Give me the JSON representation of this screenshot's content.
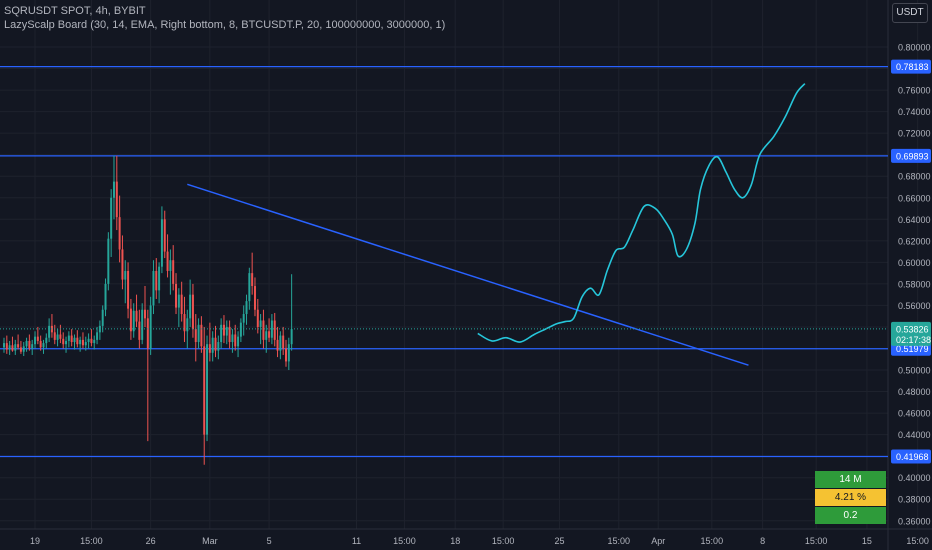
{
  "header": {
    "symbol_line": "SQRUSDT SPOT, 4h, BYBIT",
    "indicator_line": "LazyScalp Board (30, 14, EMA, Right bottom, 8, BTCUSDT.P, 20, 100000000, 3000000, 1)"
  },
  "currency_button": "USDT",
  "colors": {
    "background": "#131722",
    "grid": "#1e222d",
    "candle_up": "#26a69a",
    "candle_down": "#ef5350",
    "horizontal_level": "#2962ff",
    "trendline": "#2962ff",
    "projection": "#26c6da",
    "last_price_tag": "#26a69a",
    "level_tag": "#2962ff"
  },
  "board": {
    "rows": [
      {
        "text": "14 M",
        "color": "#2e9b3a"
      },
      {
        "text": "4.21 %",
        "color": "#f5c232"
      },
      {
        "text": "0.2",
        "color": "#2e9b3a"
      }
    ]
  },
  "chart_data": {
    "type": "candlestick",
    "timeframe": "4h",
    "y_range": [
      0.35,
      0.8
    ],
    "y_ticks": [
      "0.80000",
      "0.78000",
      "0.76000",
      "0.74000",
      "0.72000",
      "0.70000",
      "0.68000",
      "0.66000",
      "0.64000",
      "0.62000",
      "0.60000",
      "0.58000",
      "0.56000",
      "0.54000",
      "0.52000",
      "0.50000",
      "0.48000",
      "0.46000",
      "0.44000",
      "0.42000",
      "0.40000",
      "0.38000",
      "0.36000"
    ],
    "x_ticks": [
      {
        "label": "19",
        "t": 11
      },
      {
        "label": "15:00",
        "t": 31
      },
      {
        "label": "26",
        "t": 52
      },
      {
        "label": "Mar",
        "t": 73
      },
      {
        "label": "5",
        "t": 94
      },
      {
        "label": "11",
        "t": 125
      },
      {
        "label": "15:00",
        "t": 142
      },
      {
        "label": "18",
        "t": 160
      },
      {
        "label": "15:00",
        "t": 177
      },
      {
        "label": "25",
        "t": 197
      },
      {
        "label": "15:00",
        "t": 218
      },
      {
        "label": "Apr",
        "t": 232
      },
      {
        "label": "15:00",
        "t": 251
      },
      {
        "label": "8",
        "t": 269
      },
      {
        "label": "15:00",
        "t": 288
      },
      {
        "label": "15",
        "t": 306
      },
      {
        "label": "15:00",
        "t": 324
      }
    ],
    "horizontal_levels": [
      {
        "price": 0.78183,
        "label": "0.78183"
      },
      {
        "price": 0.69893,
        "label": "0.69893"
      },
      {
        "price": 0.51979,
        "label": "0.51979"
      },
      {
        "price": 0.41968,
        "label": "0.41968"
      }
    ],
    "last_price": {
      "price": 0.53826,
      "label": "0.53826",
      "countdown": "02:17:38"
    },
    "trendline": {
      "start": {
        "t": 65,
        "price": 0.6725
      },
      "end": {
        "t": 264,
        "price": 0.5045
      }
    },
    "projection_path": [
      [
        168,
        0.534
      ],
      [
        173,
        0.527
      ],
      [
        178,
        0.53
      ],
      [
        183,
        0.526
      ],
      [
        188,
        0.533
      ],
      [
        192,
        0.538
      ],
      [
        196,
        0.543
      ],
      [
        199,
        0.545
      ],
      [
        202,
        0.548
      ],
      [
        205,
        0.568
      ],
      [
        208,
        0.576
      ],
      [
        211,
        0.57
      ],
      [
        214,
        0.593
      ],
      [
        217,
        0.611
      ],
      [
        220,
        0.614
      ],
      [
        223,
        0.63
      ],
      [
        227,
        0.652
      ],
      [
        231,
        0.65
      ],
      [
        234,
        0.64
      ],
      [
        237,
        0.626
      ],
      [
        239,
        0.606
      ],
      [
        242,
        0.612
      ],
      [
        245,
        0.636
      ],
      [
        247,
        0.668
      ],
      [
        250,
        0.69
      ],
      [
        253,
        0.698
      ],
      [
        256,
        0.684
      ],
      [
        259,
        0.668
      ],
      [
        262,
        0.66
      ],
      [
        265,
        0.672
      ],
      [
        268,
        0.7
      ],
      [
        273,
        0.717
      ],
      [
        277,
        0.735
      ],
      [
        281,
        0.757
      ],
      [
        284,
        0.766
      ]
    ],
    "candles": [
      {
        "o": 0.521,
        "h": 0.53,
        "l": 0.516,
        "c": 0.525
      },
      {
        "o": 0.525,
        "h": 0.532,
        "l": 0.515,
        "c": 0.519
      },
      {
        "o": 0.519,
        "h": 0.527,
        "l": 0.514,
        "c": 0.523
      },
      {
        "o": 0.523,
        "h": 0.531,
        "l": 0.517,
        "c": 0.518
      },
      {
        "o": 0.518,
        "h": 0.528,
        "l": 0.514,
        "c": 0.524
      },
      {
        "o": 0.524,
        "h": 0.533,
        "l": 0.519,
        "c": 0.521
      },
      {
        "o": 0.521,
        "h": 0.527,
        "l": 0.515,
        "c": 0.517
      },
      {
        "o": 0.517,
        "h": 0.526,
        "l": 0.513,
        "c": 0.522
      },
      {
        "o": 0.522,
        "h": 0.53,
        "l": 0.517,
        "c": 0.527
      },
      {
        "o": 0.527,
        "h": 0.533,
        "l": 0.518,
        "c": 0.52
      },
      {
        "o": 0.52,
        "h": 0.528,
        "l": 0.514,
        "c": 0.524
      },
      {
        "o": 0.524,
        "h": 0.536,
        "l": 0.52,
        "c": 0.531
      },
      {
        "o": 0.531,
        "h": 0.54,
        "l": 0.524,
        "c": 0.527
      },
      {
        "o": 0.527,
        "h": 0.532,
        "l": 0.518,
        "c": 0.521
      },
      {
        "o": 0.521,
        "h": 0.528,
        "l": 0.515,
        "c": 0.525
      },
      {
        "o": 0.525,
        "h": 0.534,
        "l": 0.52,
        "c": 0.53
      },
      {
        "o": 0.53,
        "h": 0.548,
        "l": 0.526,
        "c": 0.541
      },
      {
        "o": 0.541,
        "h": 0.552,
        "l": 0.53,
        "c": 0.535
      },
      {
        "o": 0.535,
        "h": 0.542,
        "l": 0.524,
        "c": 0.528
      },
      {
        "o": 0.528,
        "h": 0.538,
        "l": 0.522,
        "c": 0.533
      },
      {
        "o": 0.533,
        "h": 0.542,
        "l": 0.525,
        "c": 0.529
      },
      {
        "o": 0.529,
        "h": 0.535,
        "l": 0.52,
        "c": 0.524
      },
      {
        "o": 0.524,
        "h": 0.531,
        "l": 0.516,
        "c": 0.527
      },
      {
        "o": 0.527,
        "h": 0.536,
        "l": 0.521,
        "c": 0.532
      },
      {
        "o": 0.532,
        "h": 0.538,
        "l": 0.522,
        "c": 0.526
      },
      {
        "o": 0.526,
        "h": 0.533,
        "l": 0.519,
        "c": 0.53
      },
      {
        "o": 0.53,
        "h": 0.537,
        "l": 0.521,
        "c": 0.524
      },
      {
        "o": 0.524,
        "h": 0.531,
        "l": 0.517,
        "c": 0.528
      },
      {
        "o": 0.528,
        "h": 0.535,
        "l": 0.52,
        "c": 0.523
      },
      {
        "o": 0.523,
        "h": 0.531,
        "l": 0.518,
        "c": 0.526
      },
      {
        "o": 0.526,
        "h": 0.534,
        "l": 0.52,
        "c": 0.529
      },
      {
        "o": 0.529,
        "h": 0.538,
        "l": 0.522,
        "c": 0.525
      },
      {
        "o": 0.525,
        "h": 0.532,
        "l": 0.519,
        "c": 0.528
      },
      {
        "o": 0.528,
        "h": 0.54,
        "l": 0.524,
        "c": 0.535
      },
      {
        "o": 0.535,
        "h": 0.546,
        "l": 0.528,
        "c": 0.541
      },
      {
        "o": 0.541,
        "h": 0.56,
        "l": 0.535,
        "c": 0.556
      },
      {
        "o": 0.556,
        "h": 0.585,
        "l": 0.55,
        "c": 0.58
      },
      {
        "o": 0.58,
        "h": 0.628,
        "l": 0.574,
        "c": 0.622
      },
      {
        "o": 0.622,
        "h": 0.668,
        "l": 0.605,
        "c": 0.66
      },
      {
        "o": 0.66,
        "h": 0.699,
        "l": 0.64,
        "c": 0.675
      },
      {
        "o": 0.675,
        "h": 0.699,
        "l": 0.63,
        "c": 0.642
      },
      {
        "o": 0.642,
        "h": 0.662,
        "l": 0.6,
        "c": 0.612
      },
      {
        "o": 0.612,
        "h": 0.625,
        "l": 0.575,
        "c": 0.584
      },
      {
        "o": 0.584,
        "h": 0.602,
        "l": 0.562,
        "c": 0.592
      },
      {
        "o": 0.592,
        "h": 0.6,
        "l": 0.548,
        "c": 0.557
      },
      {
        "o": 0.557,
        "h": 0.566,
        "l": 0.528,
        "c": 0.536
      },
      {
        "o": 0.536,
        "h": 0.562,
        "l": 0.53,
        "c": 0.555
      },
      {
        "o": 0.555,
        "h": 0.57,
        "l": 0.54,
        "c": 0.545
      },
      {
        "o": 0.545,
        "h": 0.556,
        "l": 0.52,
        "c": 0.528
      },
      {
        "o": 0.528,
        "h": 0.562,
        "l": 0.524,
        "c": 0.556
      },
      {
        "o": 0.556,
        "h": 0.578,
        "l": 0.54,
        "c": 0.548
      },
      {
        "o": 0.548,
        "h": 0.556,
        "l": 0.434,
        "c": 0.52
      },
      {
        "o": 0.52,
        "h": 0.568,
        "l": 0.514,
        "c": 0.56
      },
      {
        "o": 0.56,
        "h": 0.602,
        "l": 0.552,
        "c": 0.592
      },
      {
        "o": 0.592,
        "h": 0.604,
        "l": 0.566,
        "c": 0.574
      },
      {
        "o": 0.574,
        "h": 0.6,
        "l": 0.562,
        "c": 0.596
      },
      {
        "o": 0.596,
        "h": 0.652,
        "l": 0.59,
        "c": 0.64
      },
      {
        "o": 0.64,
        "h": 0.648,
        "l": 0.604,
        "c": 0.61
      },
      {
        "o": 0.61,
        "h": 0.626,
        "l": 0.586,
        "c": 0.592
      },
      {
        "o": 0.592,
        "h": 0.612,
        "l": 0.57,
        "c": 0.602
      },
      {
        "o": 0.602,
        "h": 0.616,
        "l": 0.574,
        "c": 0.58
      },
      {
        "o": 0.58,
        "h": 0.59,
        "l": 0.552,
        "c": 0.558
      },
      {
        "o": 0.558,
        "h": 0.576,
        "l": 0.54,
        "c": 0.57
      },
      {
        "o": 0.57,
        "h": 0.582,
        "l": 0.545,
        "c": 0.552
      },
      {
        "o": 0.552,
        "h": 0.568,
        "l": 0.526,
        "c": 0.536
      },
      {
        "o": 0.536,
        "h": 0.556,
        "l": 0.52,
        "c": 0.548
      },
      {
        "o": 0.548,
        "h": 0.584,
        "l": 0.54,
        "c": 0.57
      },
      {
        "o": 0.57,
        "h": 0.58,
        "l": 0.53,
        "c": 0.538
      },
      {
        "o": 0.538,
        "h": 0.552,
        "l": 0.508,
        "c": 0.526
      },
      {
        "o": 0.526,
        "h": 0.548,
        "l": 0.52,
        "c": 0.542
      },
      {
        "o": 0.542,
        "h": 0.55,
        "l": 0.516,
        "c": 0.522
      },
      {
        "o": 0.522,
        "h": 0.54,
        "l": 0.412,
        "c": 0.44
      },
      {
        "o": 0.44,
        "h": 0.532,
        "l": 0.434,
        "c": 0.524
      },
      {
        "o": 0.524,
        "h": 0.544,
        "l": 0.508,
        "c": 0.516
      },
      {
        "o": 0.516,
        "h": 0.536,
        "l": 0.508,
        "c": 0.53
      },
      {
        "o": 0.53,
        "h": 0.541,
        "l": 0.512,
        "c": 0.518
      },
      {
        "o": 0.518,
        "h": 0.532,
        "l": 0.51,
        "c": 0.526
      },
      {
        "o": 0.526,
        "h": 0.548,
        "l": 0.52,
        "c": 0.542
      },
      {
        "o": 0.542,
        "h": 0.551,
        "l": 0.525,
        "c": 0.532
      },
      {
        "o": 0.532,
        "h": 0.546,
        "l": 0.524,
        "c": 0.54
      },
      {
        "o": 0.54,
        "h": 0.546,
        "l": 0.52,
        "c": 0.526
      },
      {
        "o": 0.526,
        "h": 0.538,
        "l": 0.516,
        "c": 0.533
      },
      {
        "o": 0.533,
        "h": 0.542,
        "l": 0.518,
        "c": 0.522
      },
      {
        "o": 0.522,
        "h": 0.536,
        "l": 0.512,
        "c": 0.531
      },
      {
        "o": 0.531,
        "h": 0.548,
        "l": 0.526,
        "c": 0.544
      },
      {
        "o": 0.544,
        "h": 0.56,
        "l": 0.532,
        "c": 0.552
      },
      {
        "o": 0.552,
        "h": 0.57,
        "l": 0.542,
        "c": 0.564
      },
      {
        "o": 0.564,
        "h": 0.595,
        "l": 0.556,
        "c": 0.59
      },
      {
        "o": 0.59,
        "h": 0.609,
        "l": 0.57,
        "c": 0.578
      },
      {
        "o": 0.578,
        "h": 0.586,
        "l": 0.55,
        "c": 0.556
      },
      {
        "o": 0.556,
        "h": 0.566,
        "l": 0.534,
        "c": 0.54
      },
      {
        "o": 0.54,
        "h": 0.552,
        "l": 0.524,
        "c": 0.546
      },
      {
        "o": 0.546,
        "h": 0.556,
        "l": 0.52,
        "c": 0.528
      },
      {
        "o": 0.528,
        "h": 0.542,
        "l": 0.516,
        "c": 0.536
      },
      {
        "o": 0.536,
        "h": 0.548,
        "l": 0.526,
        "c": 0.53
      },
      {
        "o": 0.53,
        "h": 0.552,
        "l": 0.524,
        "c": 0.546
      },
      {
        "o": 0.546,
        "h": 0.553,
        "l": 0.522,
        "c": 0.528
      },
      {
        "o": 0.528,
        "h": 0.54,
        "l": 0.512,
        "c": 0.518
      },
      {
        "o": 0.518,
        "h": 0.536,
        "l": 0.51,
        "c": 0.532
      },
      {
        "o": 0.532,
        "h": 0.54,
        "l": 0.514,
        "c": 0.52
      },
      {
        "o": 0.52,
        "h": 0.528,
        "l": 0.503,
        "c": 0.508
      },
      {
        "o": 0.508,
        "h": 0.53,
        "l": 0.5,
        "c": 0.524
      },
      {
        "o": 0.524,
        "h": 0.589,
        "l": 0.518,
        "c": 0.538
      }
    ]
  }
}
